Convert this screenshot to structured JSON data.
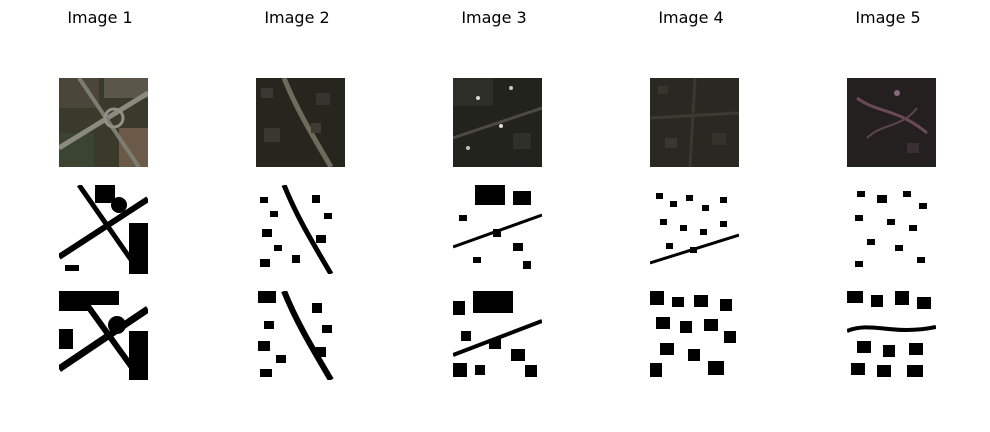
{
  "titles": [
    "Image 1",
    "Image 2",
    "Image 3",
    "Image 4",
    "Image 5"
  ],
  "rows": [
    "satellite-rgb",
    "ground-truth-mask",
    "predicted-mask"
  ],
  "colors": {
    "background": "#ffffff",
    "mask_on": "#ffffff",
    "mask_off": "#000000",
    "satellite_ground": "#2b2a22",
    "satellite_field": "#3e3a2c",
    "satellite_road": "#7c7a6e",
    "satellite_roof": "#4a3f46"
  }
}
